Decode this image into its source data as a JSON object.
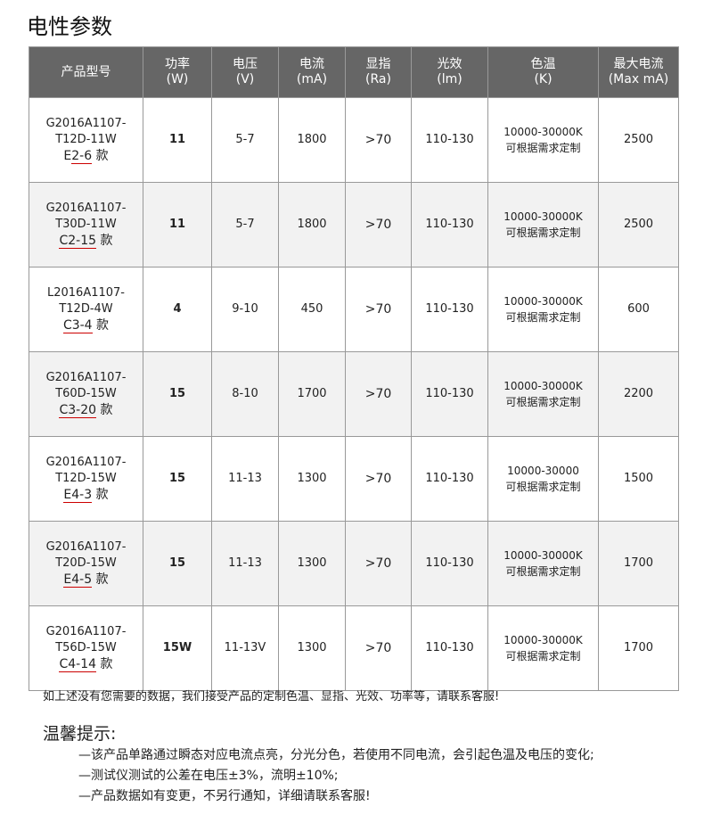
{
  "title": "电性参数",
  "headers": [
    [
      "产品型号",
      ""
    ],
    [
      "功率",
      "(W)"
    ],
    [
      "电压",
      "(V)"
    ],
    [
      "电流",
      "(mA)"
    ],
    [
      "显指",
      "(Ra)"
    ],
    [
      "光效",
      "(lm)"
    ],
    [
      "色温",
      "(K)"
    ],
    [
      "最大电流",
      "(Max mA)"
    ]
  ],
  "rows": [
    {
      "m1": "G2016A1107-",
      "m2": "T12D-11W",
      "p": "E",
      "c": "2-6",
      "k": "款",
      "w": "11",
      "v": "5-7",
      "i": "1800",
      "ra": ">70",
      "lm": "110-130",
      "ct1": "10000-30000K",
      "ct2": "可根据需求定制",
      "max": "2500"
    },
    {
      "m1": "G2016A1107-",
      "m2": "T30D-11W",
      "p": "",
      "c": "C2-15",
      "k": "款",
      "w": "11",
      "v": "5-7",
      "i": "1800",
      "ra": ">70",
      "lm": "110-130",
      "ct1": "10000-30000K",
      "ct2": "可根据需求定制",
      "max": "2500"
    },
    {
      "m1": "L2016A1107-",
      "m2": "T12D-4W",
      "p": "",
      "c": "C3-4",
      "k": "款",
      "w": "4",
      "v": "9-10",
      "i": "450",
      "ra": ">70",
      "lm": "110-130",
      "ct1": "10000-30000K",
      "ct2": "可根据需求定制",
      "max": "600"
    },
    {
      "m1": "G2016A1107-",
      "m2": "T60D-15W",
      "p": "",
      "c": "C3-20",
      "k": "款",
      "w": "15",
      "v": "8-10",
      "i": "1700",
      "ra": ">70",
      "lm": "110-130",
      "ct1": "10000-30000K",
      "ct2": "可根据需求定制",
      "max": "2200"
    },
    {
      "m1": "G2016A1107-",
      "m2": "T12D-15W",
      "p": "",
      "c": "E4-3",
      "k": "款",
      "w": "15",
      "v": "11-13",
      "i": "1300",
      "ra": ">70",
      "lm": "110-130",
      "ct1": "10000-30000",
      "ct2": "可根据需求定制",
      "max": "1500"
    },
    {
      "m1": "G2016A1107-",
      "m2": "T20D-15W",
      "p": "",
      "c": "E4-5",
      "k": "款",
      "w": "15",
      "v": "11-13",
      "i": "1300",
      "ra": ">70",
      "lm": "110-130",
      "ct1": "10000-30000K",
      "ct2": "可根据需求定制",
      "max": "1700"
    },
    {
      "m1": "G2016A1107-",
      "m2": "T56D-15W",
      "p": "",
      "c": "C4-14",
      "k": "款",
      "w": "15W",
      "v": "11-13V",
      "i": "1300",
      "ra": ">70",
      "lm": "110-130",
      "ct1": "10000-30000K",
      "ct2": "可根据需求定制",
      "max": "1700"
    }
  ],
  "note": "如上述没有您需要的数据，我们接受产品的定制色温、显指、光效、功率等，请联系客服!",
  "tip_title": "温馨提示:",
  "tips": [
    "—该产品单路通过瞬态对应电流点亮，分光分色，若使用不同电流，会引起色温及电压的变化;",
    "—测试仪测试的公差在电压±3%，流明±10%;",
    "—产品数据如有变更，不另行通知，详细请联系客服!"
  ]
}
